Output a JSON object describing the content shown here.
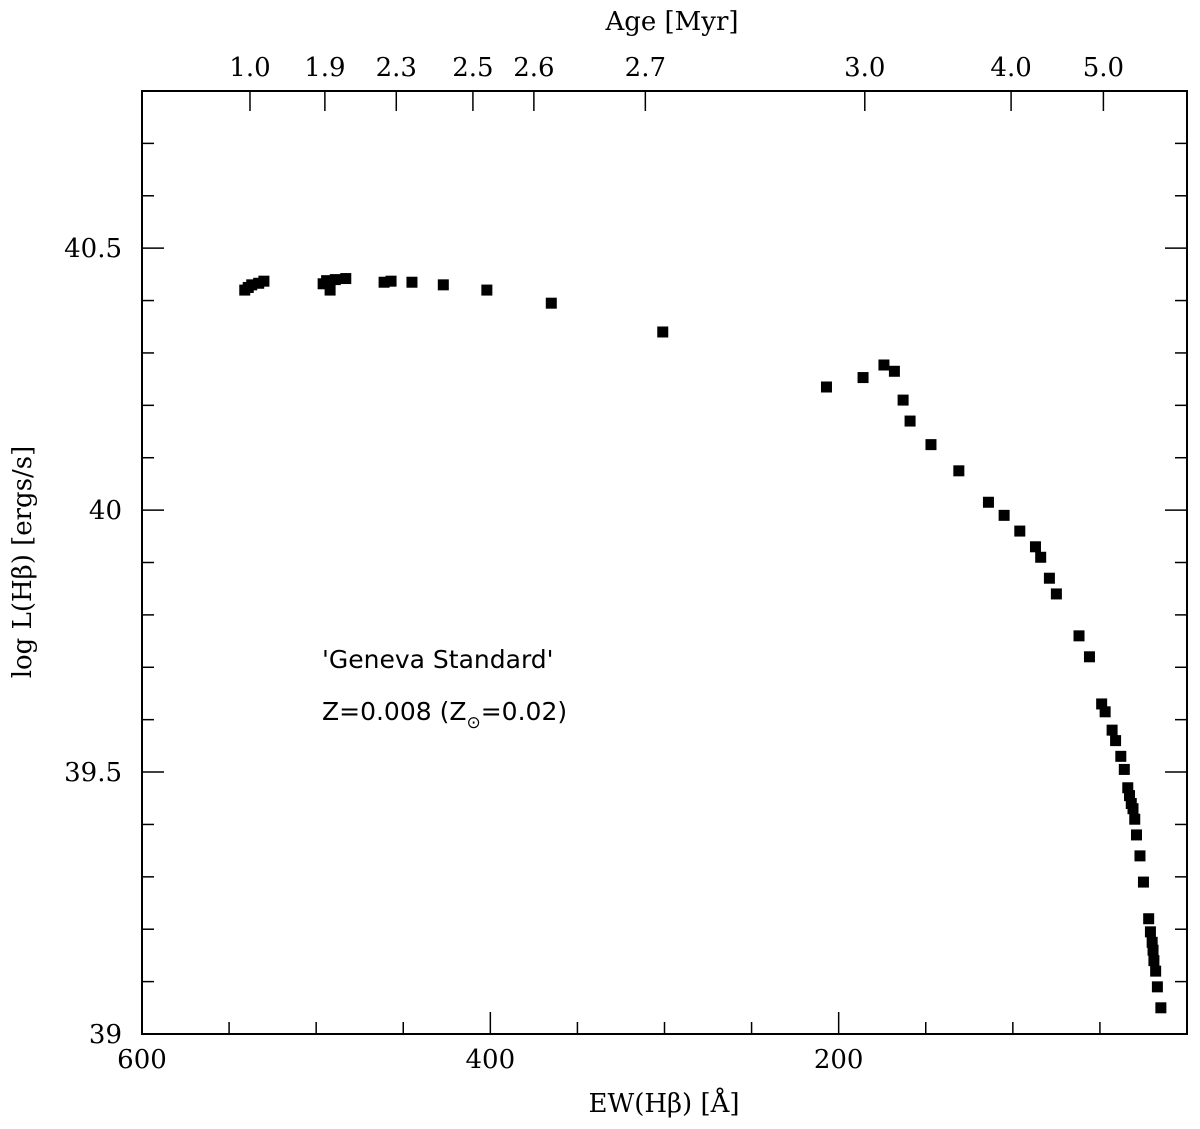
{
  "chart_data": {
    "type": "scatter",
    "xlabel": "EW(Hβ) [Å]",
    "ylabel": "log L(Hβ) [ergs/s]",
    "top_axis_label": "Age [Myr]",
    "xlim": [
      600,
      0
    ],
    "ylim": [
      39,
      40.8
    ],
    "x_major_ticks": [
      600,
      400,
      200
    ],
    "x_tick_labels": [
      "600",
      "400",
      "200"
    ],
    "x_minor_step": 50,
    "y_major_ticks": [
      39,
      39.5,
      40,
      40.5
    ],
    "y_tick_labels": [
      "39",
      "39.5",
      "40",
      "40.5"
    ],
    "y_minor_step": 0.1,
    "top_ticks": [
      {
        "ew": 538,
        "label": "1.0"
      },
      {
        "ew": 495,
        "label": "1.9"
      },
      {
        "ew": 454,
        "label": "2.3"
      },
      {
        "ew": 410,
        "label": "2.5"
      },
      {
        "ew": 375,
        "label": "2.6"
      },
      {
        "ew": 311,
        "label": "2.7"
      },
      {
        "ew": 185,
        "label": "3.0"
      },
      {
        "ew": 101,
        "label": "4.0"
      },
      {
        "ew": 48,
        "label": "5.0"
      }
    ],
    "annotations": [
      {
        "text": "'Geneva Standard'"
      },
      {
        "text_main": "Z=0.008 (Z",
        "subscript": "⊙",
        "text_end": "=0.02)"
      }
    ],
    "marker": "square",
    "marker_color": "#000000",
    "points": [
      {
        "x": 541,
        "y": 40.42
      },
      {
        "x": 539,
        "y": 40.425
      },
      {
        "x": 537,
        "y": 40.43
      },
      {
        "x": 533,
        "y": 40.433
      },
      {
        "x": 530,
        "y": 40.437
      },
      {
        "x": 496,
        "y": 40.432
      },
      {
        "x": 494,
        "y": 40.438
      },
      {
        "x": 492,
        "y": 40.42
      },
      {
        "x": 489,
        "y": 40.44
      },
      {
        "x": 483,
        "y": 40.442
      },
      {
        "x": 461,
        "y": 40.435
      },
      {
        "x": 457,
        "y": 40.437
      },
      {
        "x": 445,
        "y": 40.435
      },
      {
        "x": 427,
        "y": 40.43
      },
      {
        "x": 402,
        "y": 40.42
      },
      {
        "x": 365,
        "y": 40.395
      },
      {
        "x": 301,
        "y": 40.34
      },
      {
        "x": 207,
        "y": 40.235
      },
      {
        "x": 186,
        "y": 40.253
      },
      {
        "x": 174,
        "y": 40.277
      },
      {
        "x": 168,
        "y": 40.265
      },
      {
        "x": 163,
        "y": 40.21
      },
      {
        "x": 159,
        "y": 40.17
      },
      {
        "x": 147,
        "y": 40.125
      },
      {
        "x": 131,
        "y": 40.075
      },
      {
        "x": 114,
        "y": 40.015
      },
      {
        "x": 105,
        "y": 39.99
      },
      {
        "x": 96,
        "y": 39.96
      },
      {
        "x": 87,
        "y": 39.93
      },
      {
        "x": 84,
        "y": 39.91
      },
      {
        "x": 79,
        "y": 39.87
      },
      {
        "x": 75,
        "y": 39.84
      },
      {
        "x": 62,
        "y": 39.76
      },
      {
        "x": 56,
        "y": 39.72
      },
      {
        "x": 49,
        "y": 39.63
      },
      {
        "x": 47,
        "y": 39.615
      },
      {
        "x": 43,
        "y": 39.58
      },
      {
        "x": 41,
        "y": 39.56
      },
      {
        "x": 38,
        "y": 39.53
      },
      {
        "x": 36,
        "y": 39.505
      },
      {
        "x": 34,
        "y": 39.47
      },
      {
        "x": 33,
        "y": 39.455
      },
      {
        "x": 32,
        "y": 39.44
      },
      {
        "x": 31,
        "y": 39.43
      },
      {
        "x": 30,
        "y": 39.41
      },
      {
        "x": 29,
        "y": 39.38
      },
      {
        "x": 27,
        "y": 39.34
      },
      {
        "x": 25,
        "y": 39.29
      },
      {
        "x": 22,
        "y": 39.22
      },
      {
        "x": 21,
        "y": 39.195
      },
      {
        "x": 20,
        "y": 39.175
      },
      {
        "x": 19.5,
        "y": 39.16
      },
      {
        "x": 19,
        "y": 39.14
      },
      {
        "x": 18,
        "y": 39.12
      },
      {
        "x": 17,
        "y": 39.09
      },
      {
        "x": 15,
        "y": 39.05
      }
    ]
  }
}
